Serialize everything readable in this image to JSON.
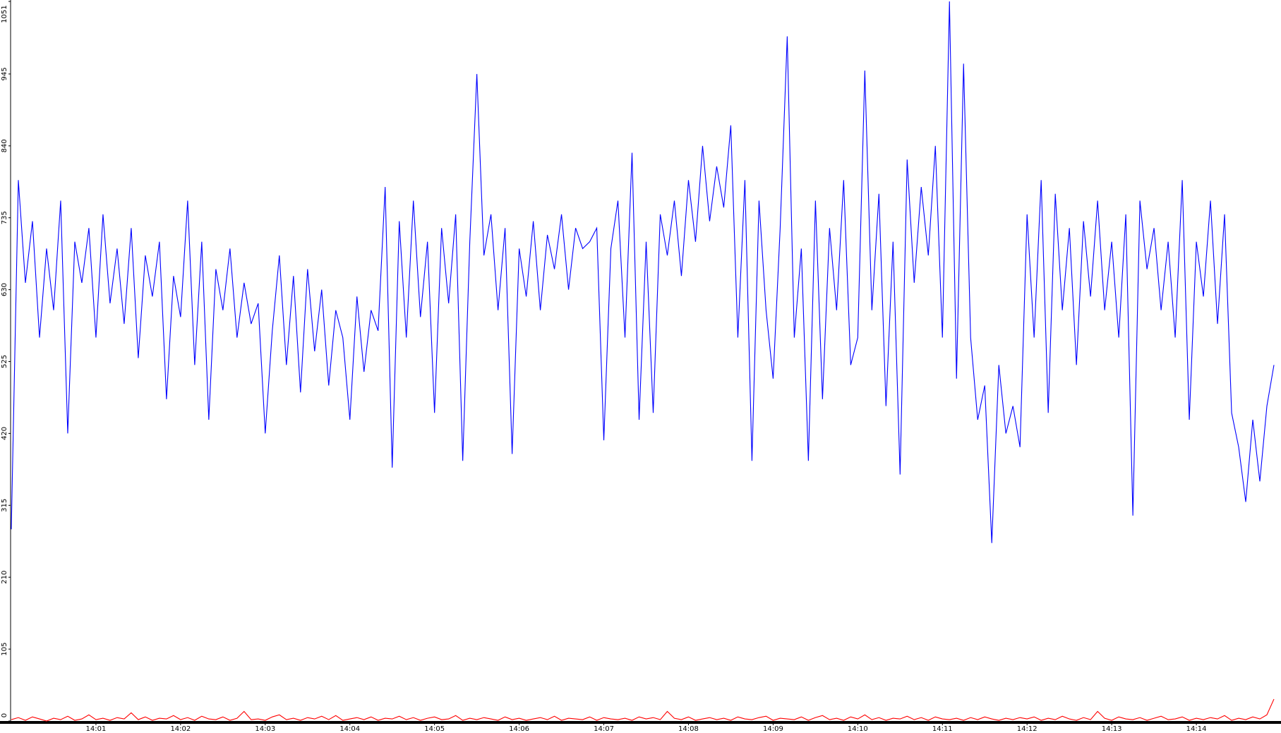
{
  "chart_data": {
    "type": "line",
    "categories": [
      null,
      null,
      null,
      null,
      null,
      null,
      null,
      null,
      null,
      null,
      null,
      null,
      "14:01",
      null,
      null,
      null,
      null,
      null,
      null,
      null,
      null,
      null,
      null,
      null,
      "14:02",
      null,
      null,
      null,
      null,
      null,
      null,
      null,
      null,
      null,
      null,
      null,
      "14:03",
      null,
      null,
      null,
      null,
      null,
      null,
      null,
      null,
      null,
      null,
      null,
      "14:04",
      null,
      null,
      null,
      null,
      null,
      null,
      null,
      null,
      null,
      null,
      null,
      "14:05",
      null,
      null,
      null,
      null,
      null,
      null,
      null,
      null,
      null,
      null,
      null,
      "14:06",
      null,
      null,
      null,
      null,
      null,
      null,
      null,
      null,
      null,
      null,
      null,
      "14:07",
      null,
      null,
      null,
      null,
      null,
      null,
      null,
      null,
      null,
      null,
      null,
      "14:08",
      null,
      null,
      null,
      null,
      null,
      null,
      null,
      null,
      null,
      null,
      null,
      "14:09",
      null,
      null,
      null,
      null,
      null,
      null,
      null,
      null,
      null,
      null,
      null,
      "14:10",
      null,
      null,
      null,
      null,
      null,
      null,
      null,
      null,
      null,
      null,
      null,
      "14:11",
      null,
      null,
      null,
      null,
      null,
      null,
      null,
      null,
      null,
      null,
      null,
      "14:12",
      null,
      null,
      null,
      null,
      null,
      null,
      null,
      null,
      null,
      null,
      null,
      "14:13",
      null,
      null,
      null,
      null,
      null,
      null,
      null,
      null,
      null,
      null,
      null,
      "14:14",
      null,
      null,
      null,
      null,
      null,
      null,
      null,
      null,
      null,
      null,
      null
    ],
    "series": [
      {
        "color": "#0000ff",
        "values": [
          280,
          790,
          640,
          730,
          560,
          690,
          600,
          760,
          420,
          700,
          640,
          720,
          560,
          740,
          610,
          690,
          580,
          720,
          530,
          680,
          620,
          700,
          470,
          650,
          590,
          760,
          520,
          700,
          440,
          660,
          600,
          690,
          560,
          640,
          580,
          610,
          420,
          570,
          680,
          520,
          650,
          480,
          660,
          540,
          630,
          490,
          600,
          560,
          440,
          620,
          510,
          600,
          570,
          780,
          370,
          730,
          560,
          760,
          590,
          700,
          450,
          720,
          610,
          740,
          380,
          700,
          945,
          680,
          740,
          600,
          720,
          390,
          690,
          620,
          730,
          600,
          710,
          660,
          740,
          630,
          720,
          690,
          700,
          720,
          410,
          690,
          760,
          560,
          830,
          440,
          700,
          450,
          740,
          680,
          760,
          650,
          790,
          700,
          840,
          730,
          810,
          750,
          870,
          560,
          790,
          380,
          760,
          600,
          500,
          720,
          1000,
          560,
          690,
          380,
          760,
          470,
          720,
          600,
          790,
          520,
          560,
          950,
          600,
          770,
          460,
          700,
          360,
          820,
          640,
          780,
          680,
          840,
          560,
          1051,
          500,
          960,
          560,
          440,
          490,
          260,
          520,
          420,
          460,
          400,
          740,
          560,
          790,
          450,
          770,
          600,
          720,
          520,
          730,
          620,
          760,
          600,
          700,
          560,
          740,
          300,
          760,
          660,
          720,
          600,
          700,
          560,
          790,
          440,
          700,
          620,
          760,
          580,
          740,
          450,
          400,
          320,
          440,
          350,
          460,
          520
        ]
      },
      {
        "color": "#ff0000",
        "values": [
          2,
          5,
          1,
          6,
          3,
          0,
          4,
          2,
          7,
          1,
          3,
          9,
          2,
          4,
          1,
          5,
          3,
          12,
          2,
          6,
          1,
          4,
          3,
          8,
          2,
          5,
          1,
          7,
          3,
          2,
          6,
          1,
          4,
          14,
          2,
          3,
          1,
          6,
          9,
          2,
          4,
          1,
          5,
          3,
          7,
          2,
          8,
          1,
          3,
          5,
          2,
          6,
          1,
          4,
          3,
          7,
          2,
          5,
          1,
          4,
          6,
          2,
          3,
          8,
          1,
          4,
          2,
          5,
          3,
          1,
          6,
          2,
          4,
          1,
          3,
          5,
          2,
          7,
          1,
          4,
          3,
          2,
          6,
          1,
          5,
          3,
          2,
          4,
          1,
          6,
          3,
          5,
          2,
          14,
          4,
          2,
          6,
          1,
          3,
          5,
          2,
          4,
          1,
          6,
          3,
          2,
          5,
          7,
          1,
          4,
          3,
          2,
          6,
          1,
          5,
          8,
          2,
          4,
          1,
          6,
          3,
          9,
          2,
          5,
          1,
          4,
          3,
          7,
          2,
          5,
          1,
          6,
          3,
          2,
          4,
          1,
          5,
          2,
          6,
          3,
          1,
          4,
          2,
          5,
          3,
          6,
          1,
          4,
          2,
          7,
          3,
          1,
          5,
          2,
          14,
          4,
          1,
          6,
          3,
          2,
          5,
          1,
          4,
          7,
          2,
          3,
          6,
          1,
          4,
          2,
          5,
          3,
          8,
          1,
          4,
          2,
          6,
          3,
          9,
          32
        ]
      }
    ],
    "ylim": [
      0,
      1051
    ],
    "yticks": [
      0,
      105,
      210,
      315,
      420,
      525,
      630,
      735,
      840,
      945,
      1051
    ],
    "grid": false
  }
}
